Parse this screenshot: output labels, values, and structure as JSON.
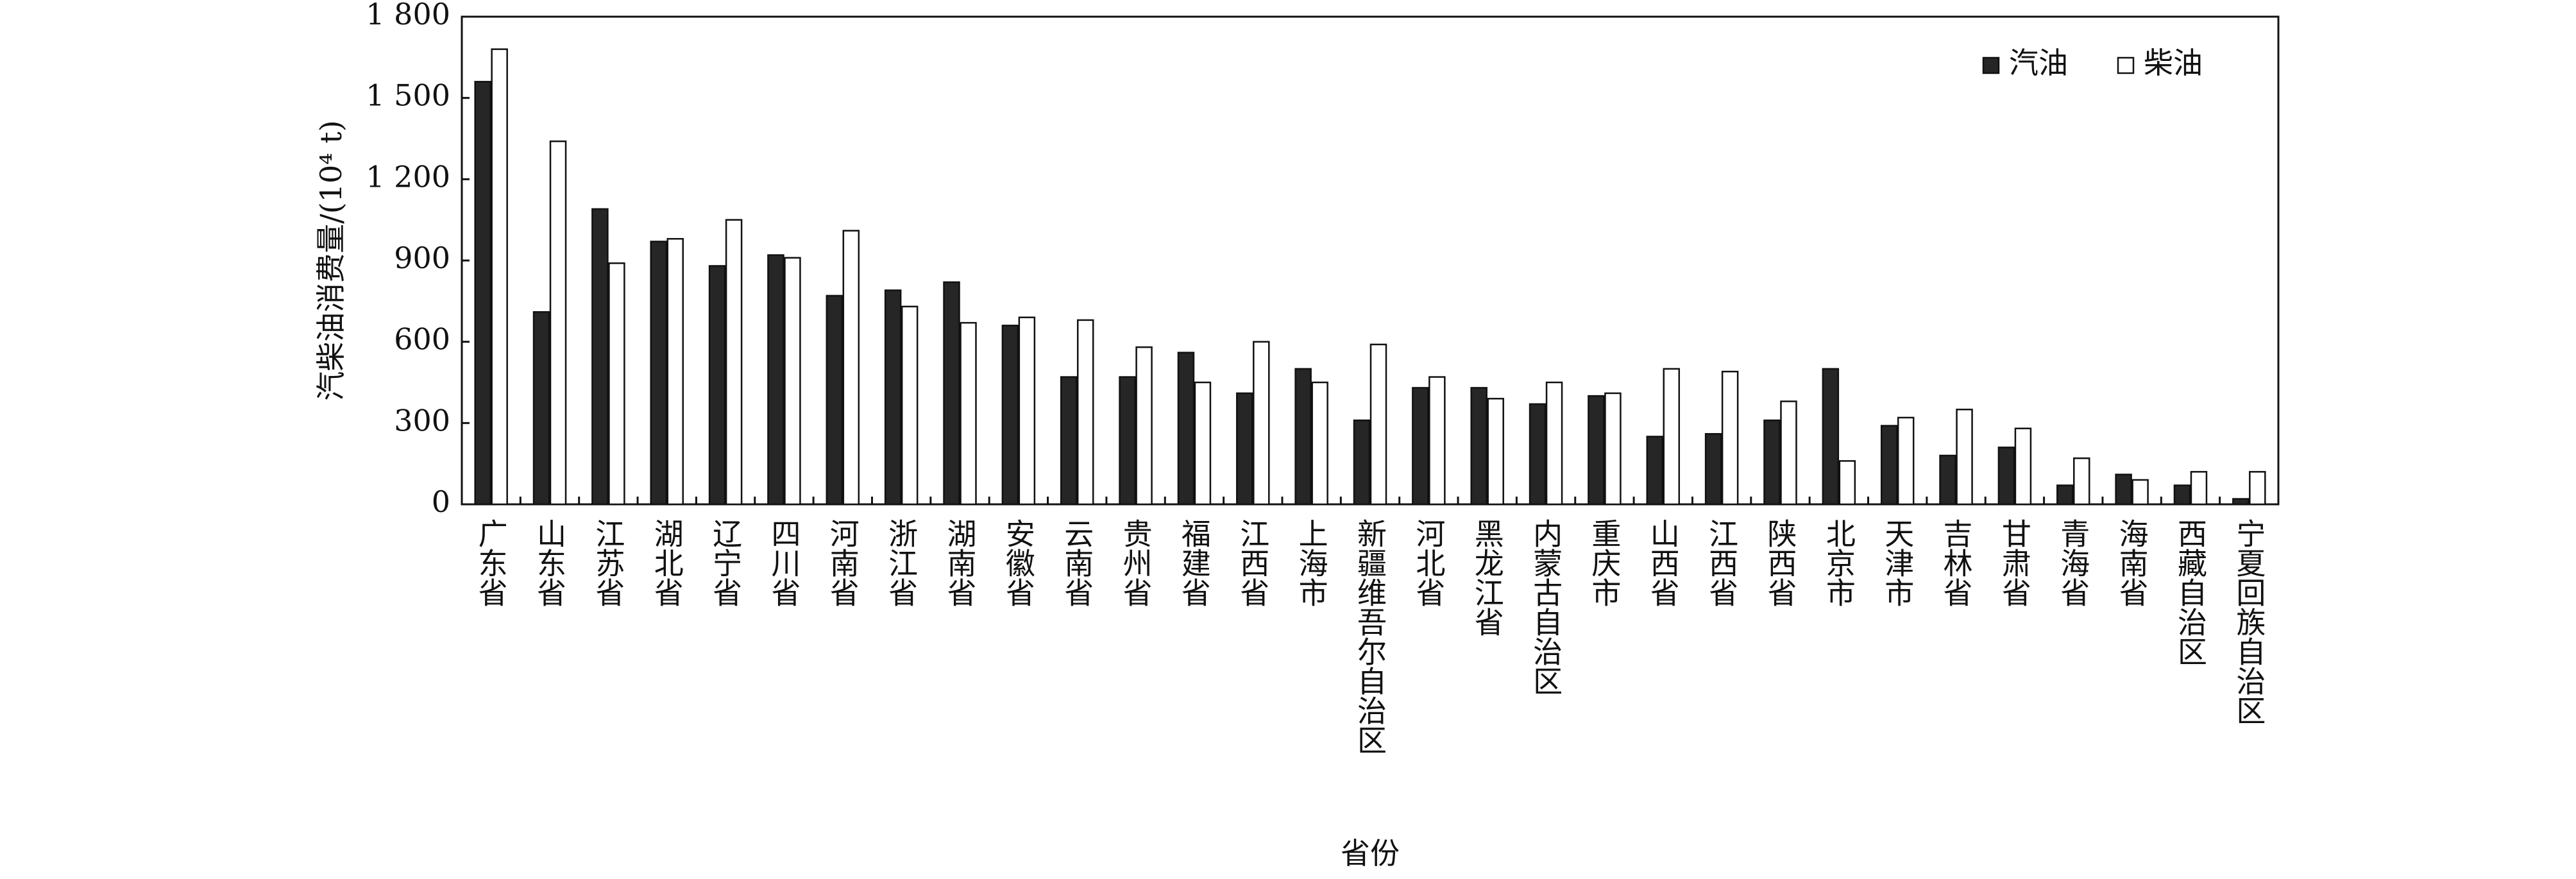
{
  "chart_data": {
    "type": "bar",
    "x_label": "省份",
    "y_label": "汽柴油消费量/(10⁴ t)",
    "categories": [
      "广东省",
      "山东省",
      "江苏省",
      "湖北省",
      "辽宁省",
      "四川省",
      "河南省",
      "浙江省",
      "湖南省",
      "安徽省",
      "云南省",
      "贵州省",
      "福建省",
      "江西省",
      "上海市",
      "新疆维吾尔自治区",
      "河北省",
      "黑龙江省",
      "内蒙古自治区",
      "重庆市",
      "山西省",
      "江西省",
      "陕西省",
      "北京市",
      "天津市",
      "吉林省",
      "甘肃省",
      "青海省",
      "海南省",
      "西藏自治区",
      "宁夏回族自治区"
    ],
    "series": [
      {
        "name": "汽油",
        "color": "#262626",
        "values": [
          1560,
          710,
          1090,
          970,
          880,
          920,
          770,
          790,
          820,
          660,
          470,
          470,
          560,
          410,
          500,
          310,
          430,
          430,
          370,
          400,
          250,
          260,
          310,
          500,
          290,
          180,
          210,
          70,
          110,
          70,
          20
        ]
      },
      {
        "name": "柴油",
        "color": "#ffffff",
        "values": [
          1680,
          1340,
          890,
          980,
          1050,
          910,
          1010,
          730,
          670,
          690,
          680,
          580,
          450,
          600,
          450,
          590,
          470,
          390,
          450,
          410,
          500,
          490,
          380,
          160,
          320,
          350,
          280,
          170,
          90,
          120,
          120
        ]
      }
    ],
    "ylim": [
      0,
      1800
    ],
    "yticks": [
      0,
      300,
      600,
      900,
      {
        "value": 1200,
        "label": "1 200"
      },
      {
        "value": 1500,
        "label": "1 500"
      },
      {
        "value": 1800,
        "label": "1 800"
      }
    ],
    "legend": "upper right"
  }
}
